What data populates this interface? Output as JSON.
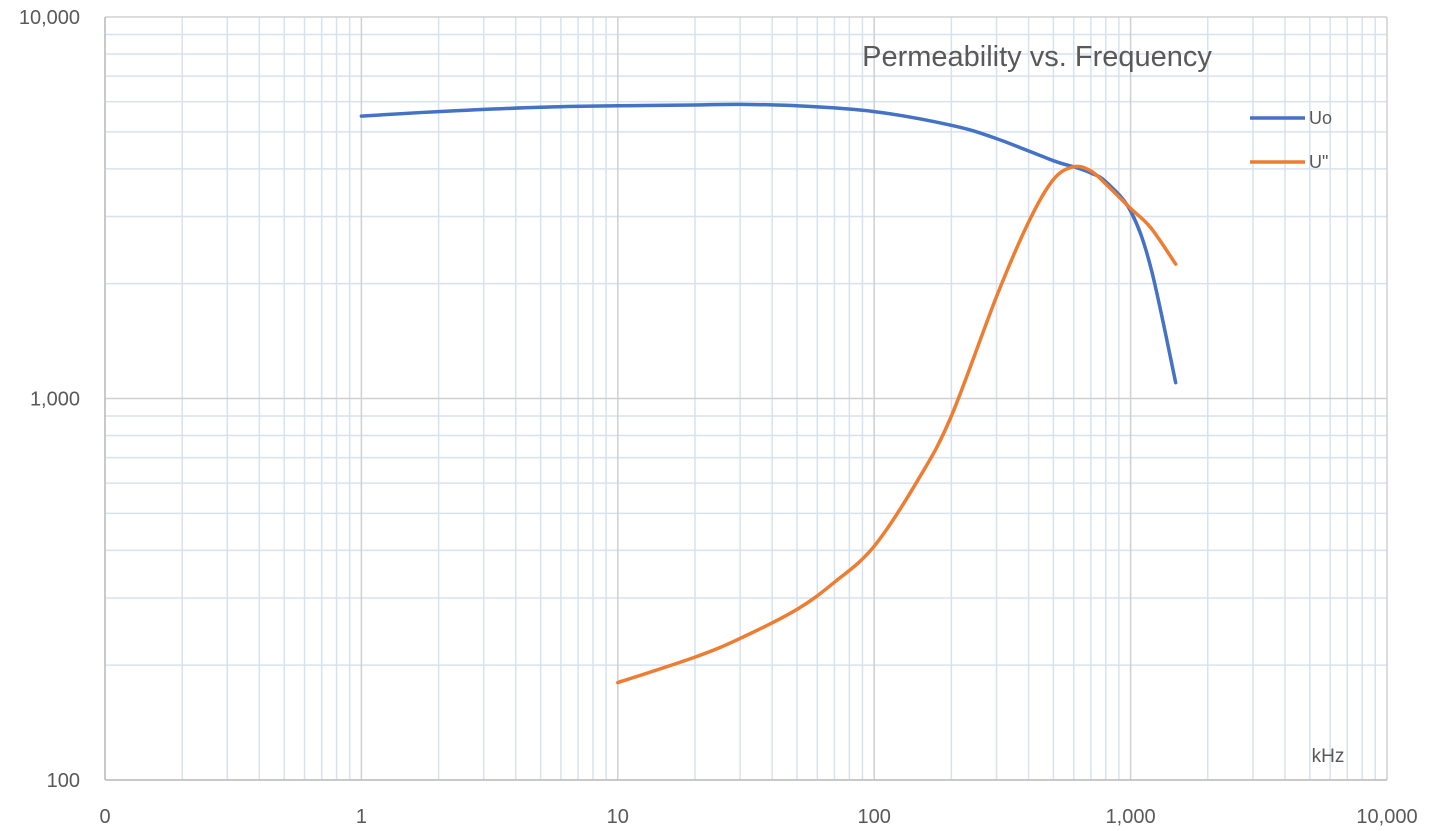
{
  "chart_data": {
    "type": "line",
    "title": "Permeability vs. Frequency",
    "x_scale": "log",
    "y_scale": "log",
    "xlim": [
      0.1,
      10000
    ],
    "ylim": [
      100,
      10000
    ],
    "x_tick_values": [
      0.1,
      1,
      10,
      100,
      1000,
      10000
    ],
    "x_tick_labels": [
      "0",
      "1",
      "10",
      "100",
      "1,000",
      "10,000"
    ],
    "y_tick_values": [
      100,
      1000,
      10000
    ],
    "y_tick_labels": [
      "100",
      "1,000",
      "10,000"
    ],
    "annotation": "kHz",
    "grid": true,
    "legend_position": "top-right",
    "series": [
      {
        "name": "Uo",
        "color": "#4472C4",
        "x": [
          1,
          2,
          5,
          10,
          20,
          30,
          50,
          100,
          200,
          300,
          500,
          600,
          700,
          800,
          1000,
          1200,
          1500
        ],
        "y": [
          5500,
          5650,
          5800,
          5850,
          5880,
          5900,
          5850,
          5650,
          5200,
          4800,
          4200,
          4050,
          3900,
          3700,
          3100,
          2200,
          1100
        ]
      },
      {
        "name": "U\"",
        "color": "#ED7D31",
        "x": [
          10,
          20,
          30,
          50,
          70,
          100,
          150,
          200,
          300,
          400,
          500,
          600,
          700,
          800,
          1000,
          1200,
          1500
        ],
        "y": [
          180,
          210,
          235,
          280,
          330,
          410,
          620,
          900,
          1850,
          2900,
          3750,
          4050,
          3950,
          3650,
          3150,
          2800,
          2250
        ]
      }
    ]
  }
}
